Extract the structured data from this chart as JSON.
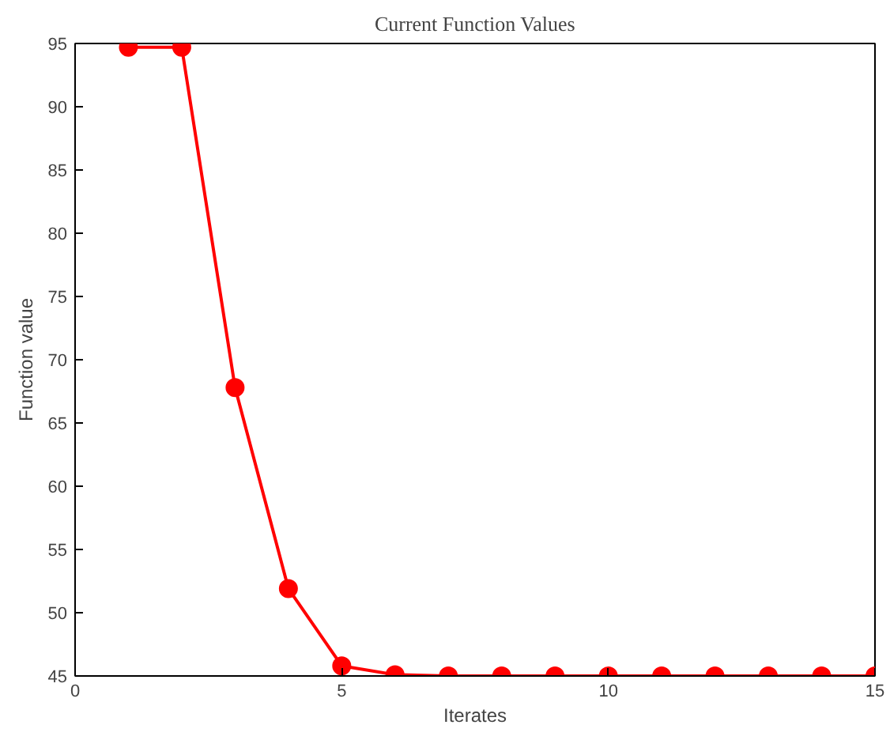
{
  "chart_data": {
    "type": "line",
    "title": "Current Function Values",
    "xlabel": "Iterates",
    "ylabel": "Function value",
    "x": [
      1,
      2,
      3,
      4,
      5,
      6,
      7,
      8,
      9,
      10,
      11,
      12,
      13,
      14,
      15
    ],
    "series": [
      {
        "color": "#ff0000",
        "values": [
          94.7,
          94.7,
          67.8,
          51.9,
          45.8,
          45.1,
          45.0,
          45.0,
          45.0,
          45.0,
          45.0,
          45.0,
          45.0,
          45.0,
          45.0
        ]
      }
    ],
    "xlim": [
      0,
      15
    ],
    "xticks": [
      0,
      5,
      10,
      15
    ],
    "ylim": [
      45,
      95
    ],
    "yticks": [
      45,
      50,
      55,
      60,
      65,
      70,
      75,
      80,
      85,
      90,
      95
    ],
    "grid": false,
    "marker": "circle",
    "line_style": "solid"
  }
}
